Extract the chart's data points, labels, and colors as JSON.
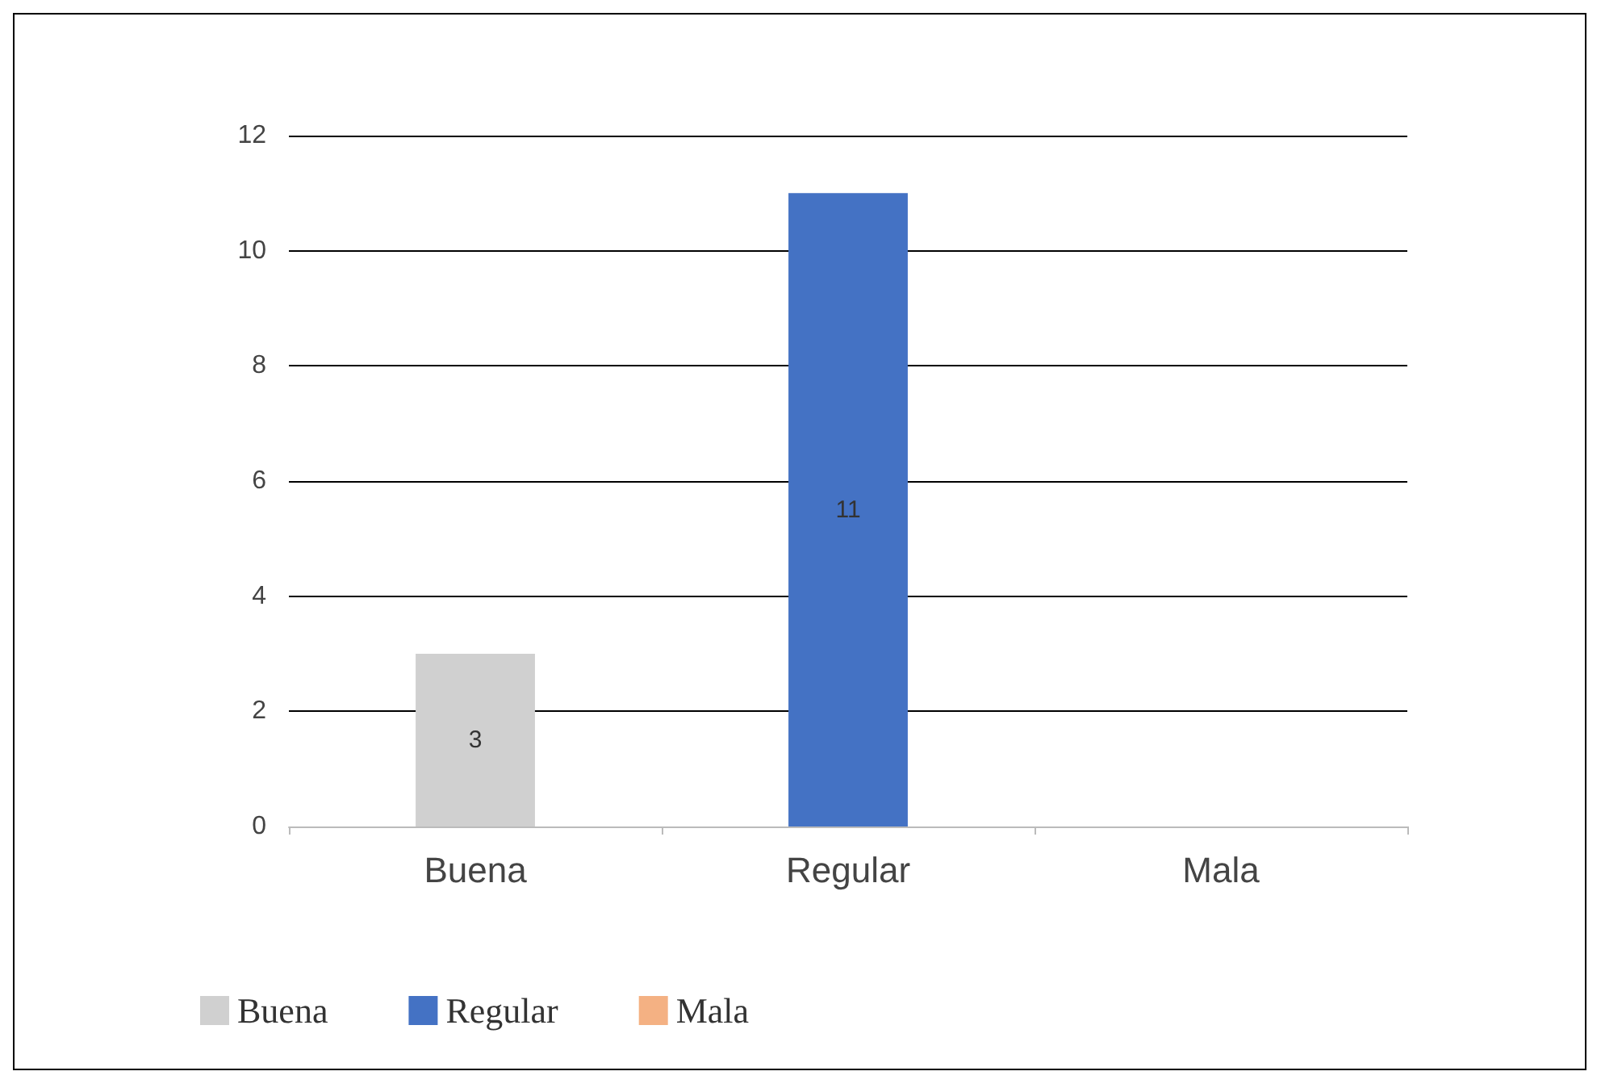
{
  "chart_data": {
    "type": "bar",
    "categories": [
      "Buena",
      "Regular",
      "Mala"
    ],
    "stacked": true,
    "series": [
      {
        "name": "Buena",
        "color": "#d0d0d0",
        "values": [
          3,
          null,
          null
        ],
        "value_labels": [
          "3",
          null,
          null
        ]
      },
      {
        "name": "Regular",
        "color": "#4472c4",
        "values": [
          null,
          11,
          null
        ],
        "value_labels": [
          null,
          "11",
          null
        ]
      },
      {
        "name": "Mala",
        "color": "#f4b183",
        "values": [
          null,
          null,
          0
        ],
        "value_labels": [
          null,
          null,
          null
        ]
      }
    ],
    "ylim": [
      0,
      12
    ],
    "yticks": [
      0,
      2,
      4,
      6,
      8,
      10,
      12
    ],
    "grid": "y",
    "legend": "bottom"
  }
}
